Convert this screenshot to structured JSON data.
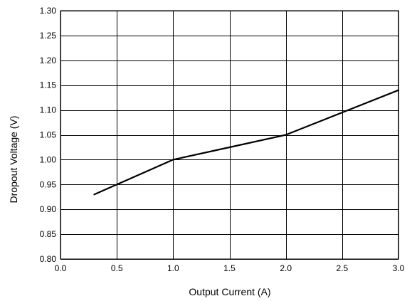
{
  "chart_data": {
    "type": "line",
    "xlabel": "Output Current (A)",
    "ylabel": "Dropout Voltage (V)",
    "xlim": [
      0.0,
      3.0
    ],
    "ylim": [
      0.8,
      1.3
    ],
    "x_ticks": [
      "0.0",
      "0.5",
      "1.0",
      "1.5",
      "2.0",
      "2.5",
      "3.0"
    ],
    "y_ticks": [
      "0.80",
      "0.85",
      "0.90",
      "0.95",
      "1.00",
      "1.05",
      "1.10",
      "1.15",
      "1.20",
      "1.25",
      "1.30"
    ],
    "grid": true,
    "series": [
      {
        "color": "#000000",
        "x": [
          0.3,
          0.5,
          1.0,
          1.5,
          2.0,
          2.5,
          3.0
        ],
        "y": [
          0.93,
          0.95,
          1.0,
          1.025,
          1.05,
          1.095,
          1.14
        ]
      }
    ]
  }
}
